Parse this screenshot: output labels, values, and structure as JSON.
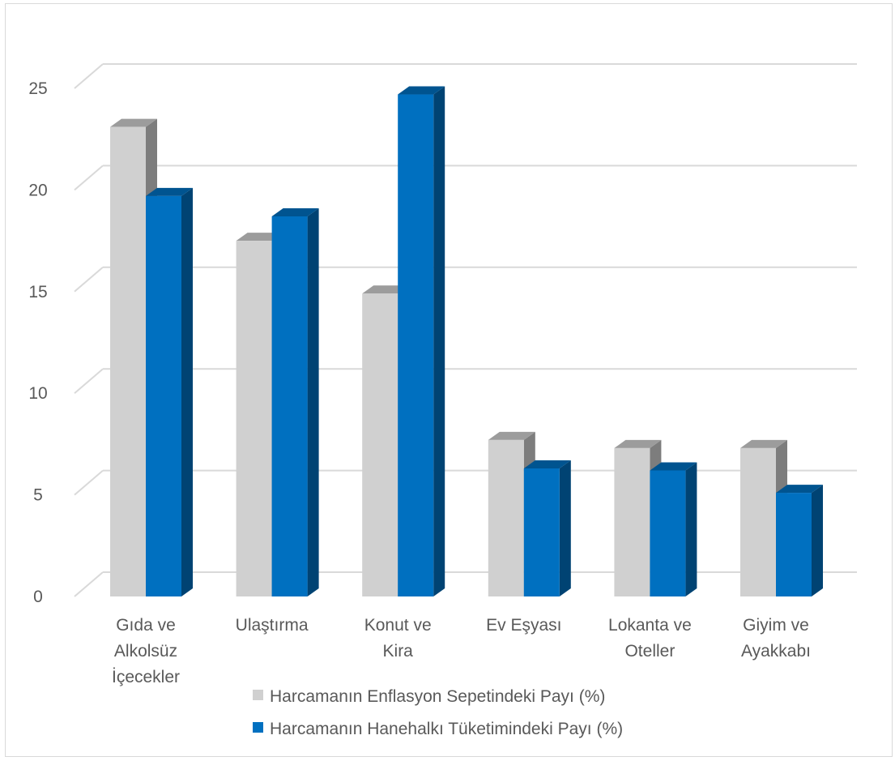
{
  "chart_data": {
    "type": "bar",
    "style": "3d-clustered-column",
    "categories": [
      [
        "Gıda ve",
        "Alkolsüz",
        "İçecekler"
      ],
      [
        "Ulaştırma"
      ],
      [
        "Konut ve",
        "Kira"
      ],
      [
        "Ev Eşyası"
      ],
      [
        "Lokanta ve",
        "Oteller"
      ],
      [
        "Giyim ve",
        "Ayakkabı"
      ]
    ],
    "series": [
      {
        "name": "Harcamanın Enflasyon Sepetindeki Payı (%)",
        "color": "#d0d0d0",
        "values": [
          23.1,
          17.5,
          14.9,
          7.7,
          7.3,
          7.3
        ]
      },
      {
        "name": "Harcamanın Hanehalkı Tüketimindeki Payı (%)",
        "color": "#0070c0",
        "values": [
          19.7,
          18.7,
          24.7,
          6.3,
          6.2,
          5.1
        ]
      }
    ],
    "yticks": [
      0,
      5,
      10,
      15,
      20,
      25
    ],
    "ylim": [
      0,
      25
    ],
    "grid": true,
    "legend": "bottom"
  }
}
